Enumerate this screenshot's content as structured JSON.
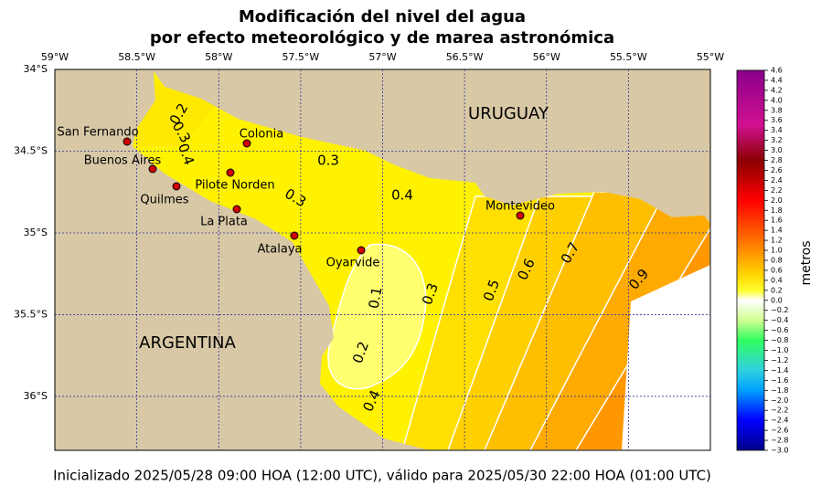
{
  "title": [
    "Modificación del nivel del agua",
    "por efecto meteorológico y de marea astronómica"
  ],
  "map": {
    "xlim": [
      -59,
      -55
    ],
    "ylim": [
      -36.33,
      -34
    ],
    "lon_ticks": [
      {
        "value": -59,
        "label": "59°W"
      },
      {
        "value": -58.5,
        "label": "58.5°W"
      },
      {
        "value": -58,
        "label": "58°W"
      },
      {
        "value": -57.5,
        "label": "57.5°W"
      },
      {
        "value": -57,
        "label": "57°W"
      },
      {
        "value": -56.5,
        "label": "56.5°W"
      },
      {
        "value": -56,
        "label": "56°W"
      },
      {
        "value": -55.5,
        "label": "55.5°W"
      },
      {
        "value": -55,
        "label": "55°W"
      }
    ],
    "lat_ticks": [
      {
        "value": -34,
        "label": "34°S"
      },
      {
        "value": -34.5,
        "label": "34.5°S"
      },
      {
        "value": -35,
        "label": "35°S"
      },
      {
        "value": -35.5,
        "label": "35.5°S"
      },
      {
        "value": -36,
        "label": "36°S"
      }
    ],
    "regions": [
      "URUGUAY",
      "ARGENTINA"
    ],
    "places": [
      "San Fernando",
      "Buenos Aires",
      "Quilmes",
      "Pilote Norden",
      "Colonia",
      "La Plata",
      "Atalaya",
      "Oyarvide",
      "Montevideo"
    ],
    "contour_labels": [
      0.2,
      0.3,
      0.4,
      0.3,
      0.3,
      0.4,
      0.1,
      0.3,
      0.5,
      0.6,
      0.7,
      0.9,
      0.2,
      0.4
    ]
  },
  "colorbar": {
    "label": "metros",
    "lim": [
      -3,
      4.6
    ],
    "ticks": [
      4.6,
      4.4,
      4.2,
      {
        "value": 4,
        "label": "4.0"
      },
      3.8,
      3.6,
      3.4,
      3.2,
      {
        "value": 3,
        "label": "3.0"
      },
      2.8,
      2.6,
      2.4,
      2.2,
      {
        "value": 2,
        "label": "2.0"
      },
      1.8,
      1.6,
      1.4,
      1.2,
      {
        "value": 1,
        "label": "1.0"
      },
      0.8,
      0.6,
      0.4,
      0.2,
      {
        "value": 0,
        "label": "0.0"
      },
      {
        "value": -0.2,
        "label": "−0.2"
      },
      {
        "value": -0.4,
        "label": "−0.4"
      },
      {
        "value": -0.6,
        "label": "−0.6"
      },
      {
        "value": -0.8,
        "label": "−0.8"
      },
      {
        "value": -1,
        "label": "−1.0"
      },
      {
        "value": -1.2,
        "label": "−1.2"
      },
      {
        "value": -1.4,
        "label": "−1.4"
      },
      {
        "value": -1.6,
        "label": "−1.6"
      },
      {
        "value": -1.8,
        "label": "−1.8"
      },
      {
        "value": -2,
        "label": "−2.0"
      },
      {
        "value": -2.2,
        "label": "−2.2"
      },
      {
        "value": -2.4,
        "label": "−2.4"
      },
      {
        "value": -2.6,
        "label": "−2.6"
      },
      {
        "value": -2.8,
        "label": "−2.8"
      },
      {
        "value": -3,
        "label": "−3.0"
      }
    ]
  },
  "footer": "Inicializado 2025/05/28 09:00 HOA (12:00 UTC), válido para 2025/05/30 22:00 HOA (01:00 UTC)"
}
